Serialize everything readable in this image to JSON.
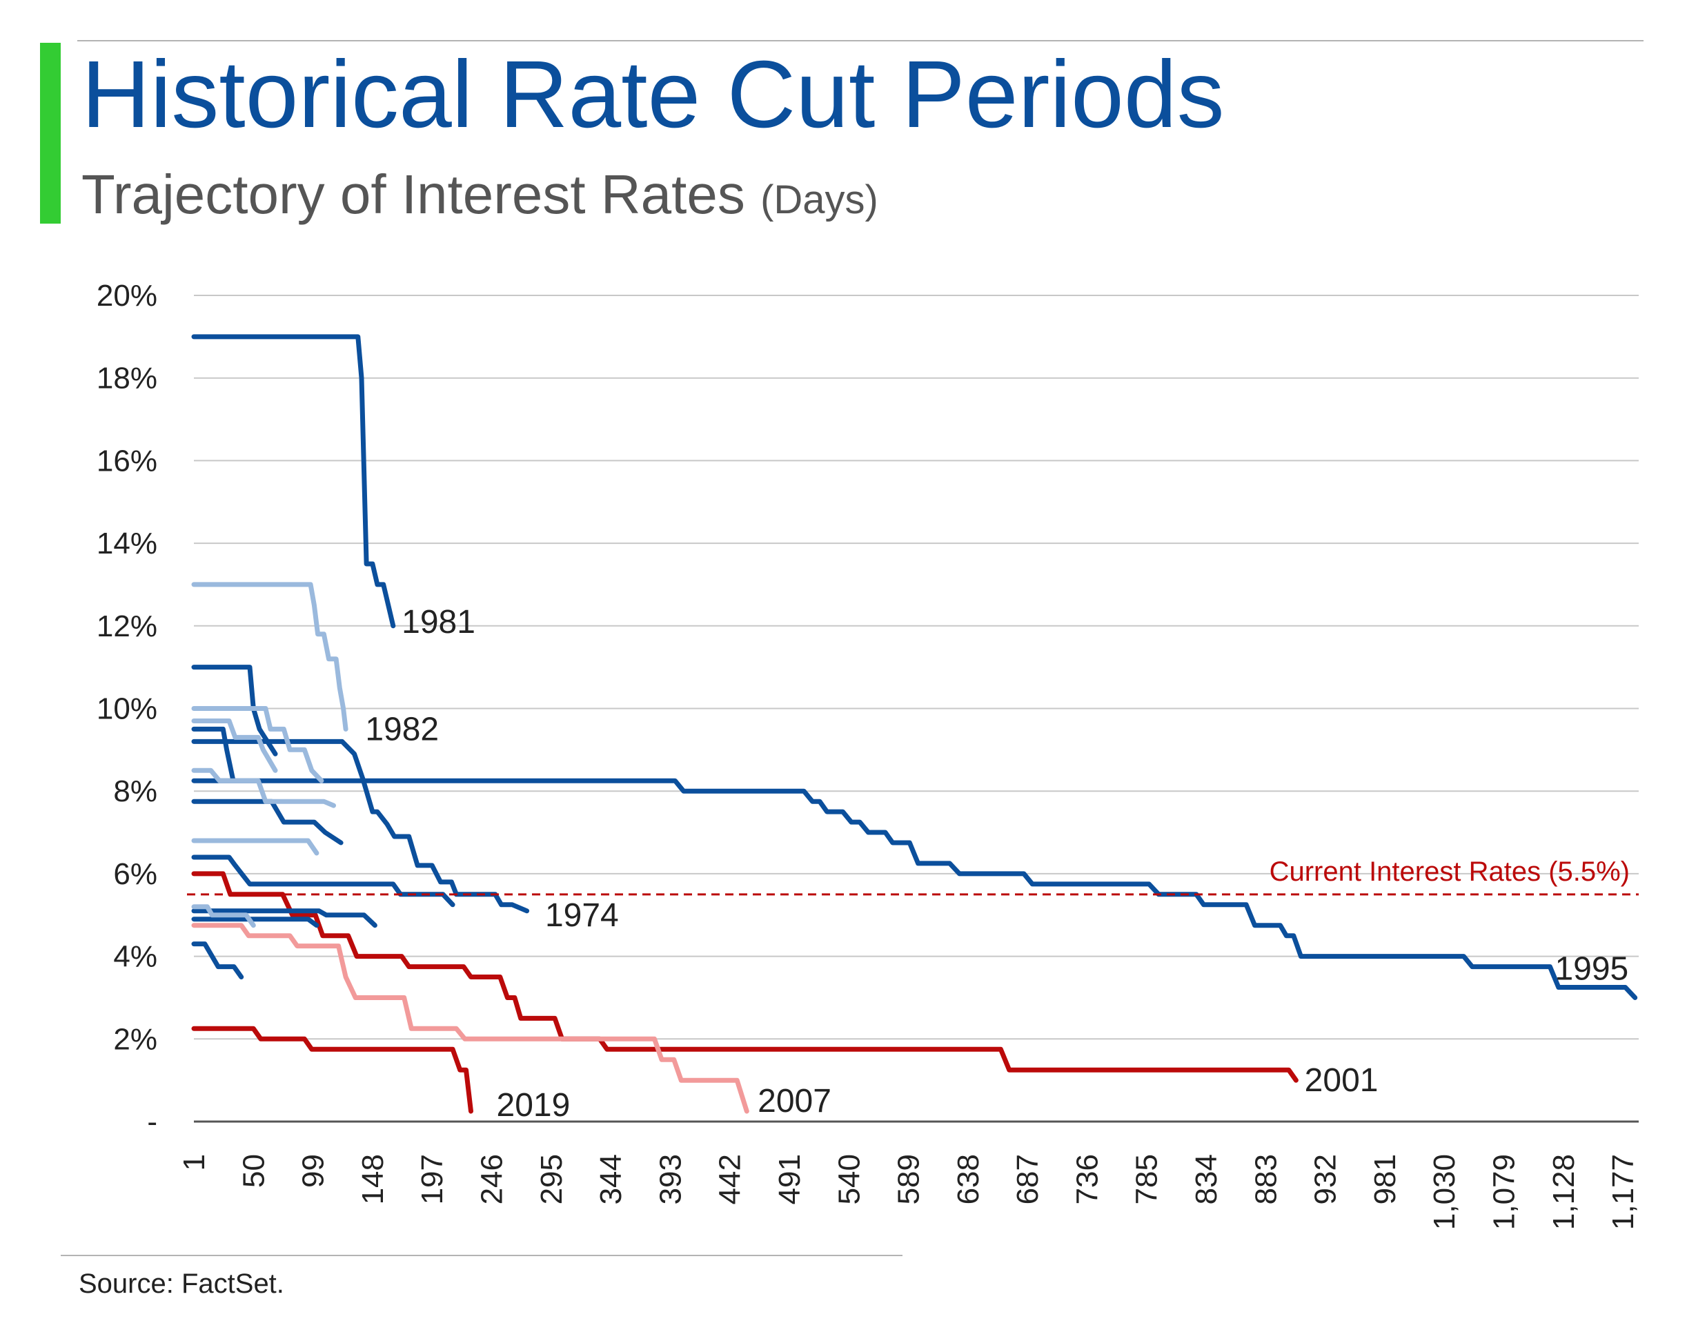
{
  "header": {
    "title": "Historical Rate Cut Periods",
    "subtitle": "Trajectory of Interest Rates",
    "subtitle_unit": "(Days)"
  },
  "footer": {
    "source": "Source: FactSet."
  },
  "colors": {
    "title": "#0b4f9c",
    "accent_bar": "#33cc33",
    "dark_blue": "#0b4f9c",
    "light_blue": "#9ab9dd",
    "dark_red": "#bb0a0a",
    "light_red": "#f29a9a",
    "reference_line": "#bb0a0a",
    "grid": "#c8c8c8"
  },
  "chart_data": {
    "type": "line",
    "title": "Historical Rate Cut Periods",
    "subtitle": "Trajectory of Interest Rates (Days)",
    "xlabel": "",
    "ylabel": "",
    "xlim": [
      1,
      1190
    ],
    "ylim": [
      0,
      20
    ],
    "grid": true,
    "y_ticks": [
      {
        "value": 0,
        "label": "-"
      },
      {
        "value": 2,
        "label": "2%"
      },
      {
        "value": 4,
        "label": "4%"
      },
      {
        "value": 6,
        "label": "6%"
      },
      {
        "value": 8,
        "label": "8%"
      },
      {
        "value": 10,
        "label": "10%"
      },
      {
        "value": 12,
        "label": "12%"
      },
      {
        "value": 14,
        "label": "14%"
      },
      {
        "value": 16,
        "label": "16%"
      },
      {
        "value": 18,
        "label": "18%"
      },
      {
        "value": 20,
        "label": "20%"
      }
    ],
    "x_ticks": [
      {
        "value": 1,
        "label": "1"
      },
      {
        "value": 50,
        "label": "50"
      },
      {
        "value": 99,
        "label": "99"
      },
      {
        "value": 148,
        "label": "148"
      },
      {
        "value": 197,
        "label": "197"
      },
      {
        "value": 246,
        "label": "246"
      },
      {
        "value": 295,
        "label": "295"
      },
      {
        "value": 344,
        "label": "344"
      },
      {
        "value": 393,
        "label": "393"
      },
      {
        "value": 442,
        "label": "442"
      },
      {
        "value": 491,
        "label": "491"
      },
      {
        "value": 540,
        "label": "540"
      },
      {
        "value": 589,
        "label": "589"
      },
      {
        "value": 638,
        "label": "638"
      },
      {
        "value": 687,
        "label": "687"
      },
      {
        "value": 736,
        "label": "736"
      },
      {
        "value": 785,
        "label": "785"
      },
      {
        "value": 834,
        "label": "834"
      },
      {
        "value": 883,
        "label": "883"
      },
      {
        "value": 932,
        "label": "932"
      },
      {
        "value": 981,
        "label": "981"
      },
      {
        "value": 1030,
        "label": "1,030"
      },
      {
        "value": 1079,
        "label": "1,079"
      },
      {
        "value": 1128,
        "label": "1,128"
      },
      {
        "value": 1177,
        "label": "1,177"
      }
    ],
    "reference_line": {
      "value": 5.5,
      "label": "Current Interest Rates (5.5%)"
    },
    "series": [
      {
        "name": "1981",
        "shade": "dark_blue",
        "label_at": [
          172,
          12.1
        ],
        "points": [
          [
            1,
            19
          ],
          [
            136,
            19
          ],
          [
            139,
            18
          ],
          [
            143,
            13.5
          ],
          [
            148,
            13.5
          ],
          [
            152,
            13
          ],
          [
            157,
            13
          ],
          [
            161,
            12.5
          ],
          [
            165,
            12
          ]
        ]
      },
      {
        "name": "1982",
        "shade": "light_blue",
        "label_at": [
          142,
          9.5
        ],
        "points": [
          [
            1,
            13
          ],
          [
            97,
            13
          ],
          [
            100,
            12.5
          ],
          [
            103,
            11.8
          ],
          [
            108,
            11.8
          ],
          [
            112,
            11.2
          ],
          [
            118,
            11.2
          ],
          [
            121,
            10.5
          ],
          [
            124,
            10
          ],
          [
            126,
            9.5
          ]
        ]
      },
      {
        "name": "1974",
        "shade": "dark_blue",
        "label_at": [
          290,
          5.0
        ],
        "points": [
          [
            1,
            9.2
          ],
          [
            123,
            9.2
          ],
          [
            133,
            8.9
          ],
          [
            140,
            8.3
          ],
          [
            148,
            7.5
          ],
          [
            152,
            7.5
          ],
          [
            160,
            7.2
          ],
          [
            166,
            6.9
          ],
          [
            178,
            6.9
          ],
          [
            185,
            6.2
          ],
          [
            197,
            6.2
          ],
          [
            204,
            5.8
          ],
          [
            213,
            5.8
          ],
          [
            217,
            5.5
          ],
          [
            249,
            5.5
          ],
          [
            254,
            5.25
          ],
          [
            263,
            5.25
          ],
          [
            275,
            5.1
          ]
        ]
      },
      {
        "name": "1995",
        "shade": "dark_blue",
        "label_at": [
          1121,
          3.7
        ],
        "points": [
          [
            1,
            8.25
          ],
          [
            397,
            8.25
          ],
          [
            404,
            8.0
          ],
          [
            503,
            8.0
          ],
          [
            510,
            7.75
          ],
          [
            516,
            7.75
          ],
          [
            522,
            7.5
          ],
          [
            535,
            7.5
          ],
          [
            542,
            7.25
          ],
          [
            549,
            7.25
          ],
          [
            556,
            7.0
          ],
          [
            570,
            7.0
          ],
          [
            576,
            6.75
          ],
          [
            590,
            6.75
          ],
          [
            597,
            6.25
          ],
          [
            623,
            6.25
          ],
          [
            631,
            6.0
          ],
          [
            684,
            6.0
          ],
          [
            691,
            5.75
          ],
          [
            787,
            5.75
          ],
          [
            795,
            5.5
          ],
          [
            826,
            5.5
          ],
          [
            832,
            5.25
          ],
          [
            867,
            5.25
          ],
          [
            874,
            4.75
          ],
          [
            895,
            4.75
          ],
          [
            900,
            4.5
          ],
          [
            906,
            4.5
          ],
          [
            912,
            4.0
          ],
          [
            1046,
            4.0
          ],
          [
            1053,
            3.75
          ],
          [
            1117,
            3.75
          ],
          [
            1124,
            3.25
          ],
          [
            1179,
            3.25
          ],
          [
            1187,
            3.0
          ]
        ]
      },
      {
        "name": "2001",
        "shade": "dark_red",
        "label_at": [
          915,
          1.0
        ],
        "points": [
          [
            1,
            6.0
          ],
          [
            25,
            6.0
          ],
          [
            31,
            5.5
          ],
          [
            74,
            5.5
          ],
          [
            82,
            5.0
          ],
          [
            101,
            5.0
          ],
          [
            107,
            4.5
          ],
          [
            128,
            4.5
          ],
          [
            135,
            4.0
          ],
          [
            172,
            4.0
          ],
          [
            178,
            3.75
          ],
          [
            223,
            3.75
          ],
          [
            229,
            3.5
          ],
          [
            253,
            3.5
          ],
          [
            259,
            3.0
          ],
          [
            265,
            3.0
          ],
          [
            270,
            2.5
          ],
          [
            298,
            2.5
          ],
          [
            304,
            2.0
          ],
          [
            335,
            2.0
          ],
          [
            341,
            1.75
          ],
          [
            665,
            1.75
          ],
          [
            672,
            1.25
          ],
          [
            902,
            1.25
          ],
          [
            908,
            1.0
          ]
        ]
      },
      {
        "name": "2007",
        "shade": "light_red",
        "label_at": [
          465,
          0.5
        ],
        "points": [
          [
            1,
            4.75
          ],
          [
            40,
            4.75
          ],
          [
            46,
            4.5
          ],
          [
            80,
            4.5
          ],
          [
            86,
            4.25
          ],
          [
            120,
            4.25
          ],
          [
            126,
            3.5
          ],
          [
            134,
            3.0
          ],
          [
            174,
            3.0
          ],
          [
            180,
            2.25
          ],
          [
            217,
            2.25
          ],
          [
            224,
            2.0
          ],
          [
            380,
            2.0
          ],
          [
            386,
            1.5
          ],
          [
            396,
            1.5
          ],
          [
            402,
            1.0
          ],
          [
            448,
            1.0
          ],
          [
            456,
            0.25
          ]
        ]
      },
      {
        "name": "2019",
        "shade": "dark_red",
        "label_at": [
          250,
          0.4
        ],
        "points": [
          [
            1,
            2.25
          ],
          [
            50,
            2.25
          ],
          [
            56,
            2.0
          ],
          [
            92,
            2.0
          ],
          [
            98,
            1.75
          ],
          [
            214,
            1.75
          ],
          [
            220,
            1.25
          ],
          [
            225,
            1.25
          ],
          [
            229,
            0.25
          ]
        ]
      },
      {
        "name": "",
        "shade": "dark_blue",
        "points": [
          [
            1,
            11
          ],
          [
            47,
            11
          ],
          [
            50,
            10
          ],
          [
            55,
            9.5
          ],
          [
            68,
            8.9
          ]
        ]
      },
      {
        "name": "",
        "shade": "dark_blue",
        "points": [
          [
            1,
            9.5
          ],
          [
            25,
            9.5
          ],
          [
            28,
            9.0
          ],
          [
            33,
            8.3
          ]
        ]
      },
      {
        "name": "",
        "shade": "dark_blue",
        "points": [
          [
            1,
            7.75
          ],
          [
            65,
            7.75
          ],
          [
            75,
            7.25
          ],
          [
            100,
            7.25
          ],
          [
            109,
            7.0
          ],
          [
            122,
            6.75
          ]
        ]
      },
      {
        "name": "",
        "shade": "dark_blue",
        "points": [
          [
            1,
            6.4
          ],
          [
            30,
            6.4
          ],
          [
            35,
            6.2
          ],
          [
            47,
            5.75
          ],
          [
            165,
            5.75
          ],
          [
            171,
            5.5
          ],
          [
            206,
            5.5
          ],
          [
            214,
            5.25
          ]
        ]
      },
      {
        "name": "",
        "shade": "dark_blue",
        "points": [
          [
            1,
            5.1
          ],
          [
            104,
            5.1
          ],
          [
            110,
            5.0
          ],
          [
            141,
            5.0
          ],
          [
            150,
            4.75
          ]
        ]
      },
      {
        "name": "",
        "shade": "dark_blue",
        "points": [
          [
            1,
            4.9
          ],
          [
            95,
            4.9
          ],
          [
            102,
            4.75
          ]
        ]
      },
      {
        "name": "",
        "shade": "dark_blue",
        "points": [
          [
            1,
            4.3
          ],
          [
            10,
            4.3
          ],
          [
            21,
            3.75
          ],
          [
            34,
            3.75
          ],
          [
            40,
            3.5
          ]
        ]
      },
      {
        "name": "",
        "shade": "light_blue",
        "points": [
          [
            1,
            10
          ],
          [
            60,
            10
          ],
          [
            64,
            9.5
          ],
          [
            75,
            9.5
          ],
          [
            80,
            9.0
          ],
          [
            92,
            9.0
          ],
          [
            98,
            8.5
          ],
          [
            106,
            8.25
          ]
        ]
      },
      {
        "name": "",
        "shade": "light_blue",
        "points": [
          [
            1,
            9.7
          ],
          [
            30,
            9.7
          ],
          [
            35,
            9.3
          ],
          [
            54,
            9.3
          ],
          [
            58,
            9.0
          ],
          [
            68,
            8.5
          ]
        ]
      },
      {
        "name": "",
        "shade": "light_blue",
        "points": [
          [
            1,
            8.5
          ],
          [
            15,
            8.5
          ],
          [
            22,
            8.25
          ],
          [
            54,
            8.25
          ],
          [
            60,
            7.75
          ],
          [
            108,
            7.75
          ],
          [
            116,
            7.65
          ]
        ]
      },
      {
        "name": "",
        "shade": "light_blue",
        "points": [
          [
            1,
            6.8
          ],
          [
            95,
            6.8
          ],
          [
            102,
            6.5
          ]
        ]
      },
      {
        "name": "",
        "shade": "light_blue",
        "points": [
          [
            1,
            5.2
          ],
          [
            12,
            5.2
          ],
          [
            16,
            5.0
          ],
          [
            44,
            5.0
          ],
          [
            50,
            4.75
          ]
        ]
      }
    ]
  }
}
